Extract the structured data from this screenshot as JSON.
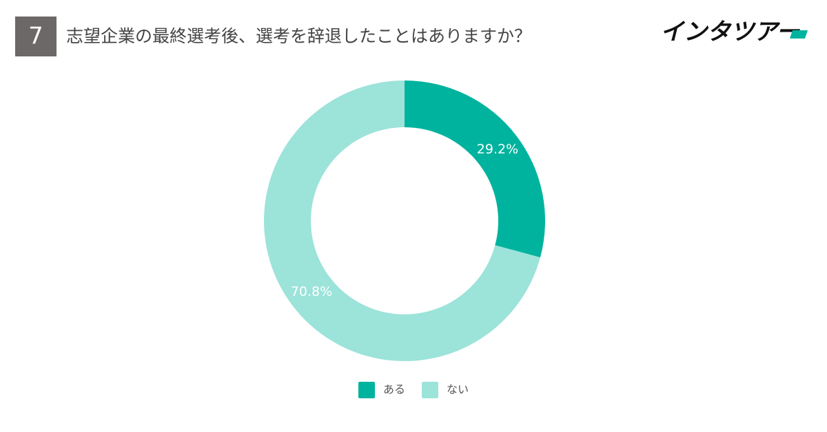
{
  "chart_data": {
    "type": "donut",
    "badge": "7",
    "title": "志望企業の最終選考後、選考を辞退したことはありますか？",
    "brand": "インタツアー",
    "categories": [
      "ある",
      "ない"
    ],
    "values": [
      29.2,
      70.8
    ],
    "value_labels": [
      "29.2%",
      "70.8%"
    ],
    "colors": [
      "#00b39e",
      "#9ce3da"
    ],
    "legend": "bottom"
  }
}
